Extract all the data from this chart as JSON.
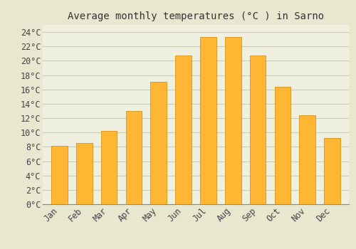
{
  "title": "Average monthly temperatures (°C ) in Sarno",
  "months": [
    "Jan",
    "Feb",
    "Mar",
    "Apr",
    "May",
    "Jun",
    "Jul",
    "Aug",
    "Sep",
    "Oct",
    "Nov",
    "Dec"
  ],
  "temperatures": [
    8.1,
    8.5,
    10.2,
    13.0,
    17.1,
    20.7,
    23.3,
    23.3,
    20.7,
    16.4,
    12.4,
    9.2
  ],
  "bar_color_top": "#FFB733",
  "bar_color_bottom": "#F5A000",
  "bar_edge_color": "#CC8800",
  "background_color": "#E8E8D0",
  "plot_bg_color": "#F0F0E0",
  "grid_color": "#CCCCBB",
  "ytick_step": 2,
  "ymax": 25,
  "title_fontsize": 10,
  "tick_label_fontsize": 8.5,
  "font_family": "monospace",
  "bar_width": 0.65
}
